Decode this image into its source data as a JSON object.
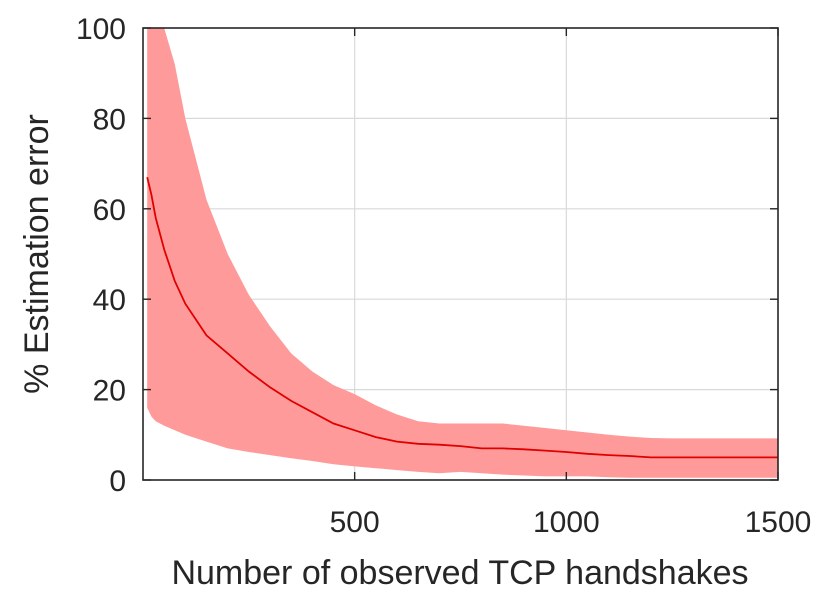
{
  "chart_data": {
    "type": "line",
    "xlabel": "Number of observed TCP handshakes",
    "ylabel": "% Estimation error",
    "xlim": [
      0,
      1500
    ],
    "ylim": [
      0,
      100
    ],
    "x_ticks": [
      500,
      1000,
      1500
    ],
    "y_ticks": [
      0,
      20,
      40,
      60,
      80,
      100
    ],
    "grid": true,
    "colors": {
      "band": "#ff9a9a",
      "line": "#e00000",
      "axis": "#262626",
      "grid": "#d9d9d9"
    },
    "series": [
      {
        "x": [
          10,
          20,
          30,
          50,
          75,
          100,
          150,
          200,
          250,
          300,
          350,
          400,
          450,
          500,
          550,
          600,
          650,
          700,
          750,
          800,
          850,
          900,
          950,
          1000,
          1050,
          1100,
          1150,
          1200,
          1250,
          1300,
          1350,
          1400,
          1450,
          1500
        ],
        "y": [
          67,
          63,
          58,
          51,
          44,
          39,
          32,
          28,
          24,
          20.5,
          17.5,
          15,
          12.5,
          11,
          9.5,
          8.5,
          8,
          7.8,
          7.5,
          7,
          7,
          6.8,
          6.5,
          6.2,
          5.8,
          5.5,
          5.3,
          5,
          5,
          5,
          5,
          5,
          5,
          5
        ],
        "lower": [
          16,
          14,
          13,
          12,
          11,
          10,
          8.5,
          7,
          6.2,
          5.5,
          4.8,
          4.2,
          3.5,
          3,
          2.6,
          2.2,
          1.8,
          1.5,
          1.8,
          1.5,
          1.2,
          1.0,
          0.8,
          0.8,
          0.8,
          0.6,
          0.5,
          0.5,
          0.5,
          0.5,
          0.5,
          0.5,
          0.5,
          0.5
        ],
        "upper": [
          100,
          100,
          100,
          100,
          92,
          80,
          62,
          50,
          41,
          34,
          28,
          24,
          21,
          19,
          16.5,
          14.5,
          13,
          12.5,
          12.5,
          12.5,
          12.5,
          12,
          11.5,
          11,
          10.5,
          10,
          9.6,
          9.3,
          9.2,
          9.2,
          9.2,
          9.2,
          9.2,
          9.2
        ]
      }
    ]
  }
}
